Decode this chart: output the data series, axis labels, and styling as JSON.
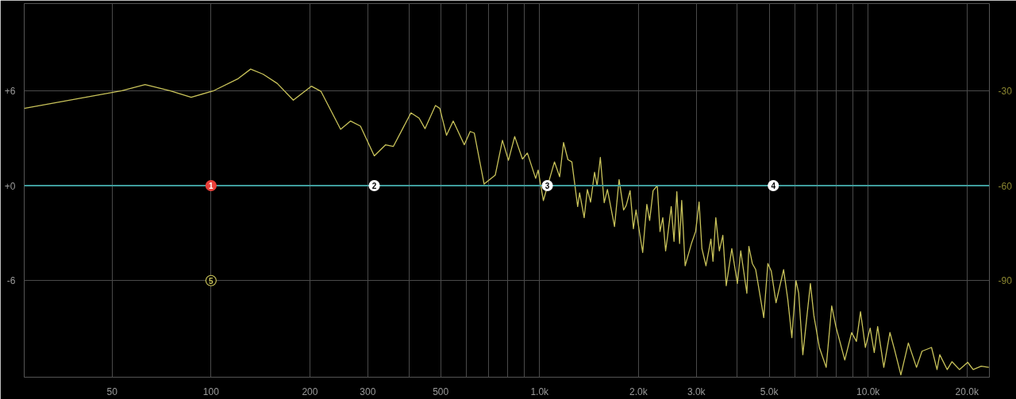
{
  "chart_data": {
    "type": "line",
    "xlim": [
      27,
      23400
    ],
    "log": "x",
    "xticks": [
      50,
      100,
      200,
      300,
      {
        "value": 400,
        "label": null
      },
      500,
      {
        "value": 600,
        "label": null
      },
      {
        "value": 700,
        "label": null
      },
      {
        "value": 800,
        "label": null
      },
      {
        "value": 900,
        "label": null
      },
      {
        "value": 1000,
        "label": "1.0k"
      },
      {
        "value": 2000,
        "label": "2.0k"
      },
      {
        "value": 3000,
        "label": "3.0k"
      },
      {
        "value": 4000,
        "label": null
      },
      {
        "value": 5000,
        "label": "5.0k"
      },
      {
        "value": 6000,
        "label": null
      },
      {
        "value": 7000,
        "label": null
      },
      {
        "value": 8000,
        "label": null
      },
      {
        "value": 9000,
        "label": null
      },
      {
        "value": 10000,
        "label": "10.0k"
      },
      {
        "value": 20000,
        "label": "20.0k"
      }
    ],
    "ylim": [
      -12.1,
      11.5
    ],
    "yticks": [
      {
        "value": 6,
        "label": "+6"
      },
      {
        "value": 0,
        "label": "+0"
      },
      -6
    ],
    "y2lim": [
      -120.5,
      -2.5
    ],
    "y2ticks": [
      -30,
      -60,
      -90
    ],
    "grid": true,
    "series": [
      {
        "axis": "y2",
        "color": "#c9c35a",
        "x": [
          27,
          53.5,
          63,
          75,
          87,
          102,
          121,
          132,
          144,
          159,
          178,
          202,
          216,
          248,
          266,
          285,
          314,
          340,
          359,
          406,
          430,
          448,
          482,
          497,
          521,
          546,
          590,
          615,
          633,
          678,
          733,
          771,
          804,
          840,
          887,
          918,
          973,
          990,
          1027,
          1110,
          1151,
          1183,
          1220,
          1254,
          1306,
          1324,
          1367,
          1398,
          1430,
          1470,
          1497,
          1531,
          1573,
          1609,
          1691,
          1746,
          1802,
          1835,
          1886,
          1930,
          1966,
          2060,
          2121,
          2163,
          2216,
          2282,
          2326,
          2372,
          2419,
          2455,
          2516,
          2566,
          2617,
          2668,
          2708,
          2774,
          2899,
          2985,
          3059,
          3120,
          3210,
          3323,
          3372,
          3439,
          3525,
          3613,
          3700,
          3847,
          4000,
          4096,
          4275,
          4336,
          4442,
          4548,
          4812,
          4953,
          5073,
          5245,
          5531,
          5695,
          5860,
          6032,
          6148,
          6329,
          6674,
          6837,
          7106,
          7454,
          7748,
          7978,
          8492,
          8909,
          9213,
          9482,
          9809,
          10144,
          10440,
          10692,
          11163,
          11653,
          12049,
          12580,
          13258,
          14040,
          14591,
          15596,
          16208,
          16522,
          17411,
          18005,
          18965,
          20096,
          20880,
          22092,
          23306
        ],
        "values": [
          -35.6,
          -30,
          -28.1,
          -30,
          -32.1,
          -30,
          -26.2,
          -23.2,
          -24.8,
          -27.7,
          -33.0,
          -28.6,
          -30.2,
          -42.2,
          -39.6,
          -41.2,
          -50.6,
          -47.1,
          -47.6,
          -37.0,
          -38.7,
          -42.0,
          -34.7,
          -35.6,
          -44.1,
          -39.6,
          -47.1,
          -42.9,
          -43.4,
          -59.5,
          -56.7,
          -45.7,
          -52.0,
          -44.5,
          -51.6,
          -49.7,
          -57.7,
          -55.1,
          -64.7,
          -52.5,
          -57.2,
          -46.4,
          -51.8,
          -52.5,
          -66.6,
          -62.3,
          -70.1,
          -61.2,
          -65.2,
          -55.8,
          -60,
          -51.1,
          -65.4,
          -61.2,
          -72.9,
          -58.1,
          -67.7,
          -66.3,
          -61.6,
          -73.6,
          -67.7,
          -81.1,
          -65.9,
          -71.0,
          -61.6,
          -60,
          -74.5,
          -70.1,
          -80.6,
          -75.7,
          -66.6,
          -77.6,
          -61.9,
          -78.3,
          -64.7,
          -85.3,
          -78.3,
          -74.5,
          -65.2,
          -79.9,
          -85.3,
          -76.9,
          -83.9,
          -70.1,
          -80.6,
          -75.7,
          -91.6,
          -79.9,
          -90.9,
          -80.6,
          -94.0,
          -79.2,
          -84.6,
          -86.5,
          -101.7,
          -84.6,
          -87.0,
          -97.0,
          -86.5,
          -95.9,
          -108.0,
          -90.0,
          -94.0,
          -113.4,
          -90.9,
          -101.0,
          -111.1,
          -117.4,
          -98.0,
          -104.5,
          -115.1,
          -106.4,
          -109.2,
          -99.8,
          -111.1,
          -105.0,
          -112.7,
          -104.5,
          -117.4,
          -106.4,
          -112.0,
          -119.8,
          -109.7,
          -117.4,
          -112.3,
          -111.1,
          -118.1,
          -113.4,
          -118.1,
          -115.6,
          -118.1,
          -115.8,
          -118.1,
          -117.0,
          -117.4
        ]
      },
      {
        "color": "#3f9c9c",
        "x": [
          27,
          23400
        ],
        "values": [
          0,
          0
        ]
      }
    ],
    "annotations": [
      {
        "text": "1",
        "x": 100,
        "y": 0
      },
      {
        "text": "2",
        "x": 314,
        "y": 0
      },
      {
        "text": "3",
        "x": 1056,
        "y": 0
      },
      {
        "text": "4",
        "x": 5146,
        "y": 0
      },
      {
        "text": "5",
        "x": 100,
        "y": -6
      }
    ]
  }
}
